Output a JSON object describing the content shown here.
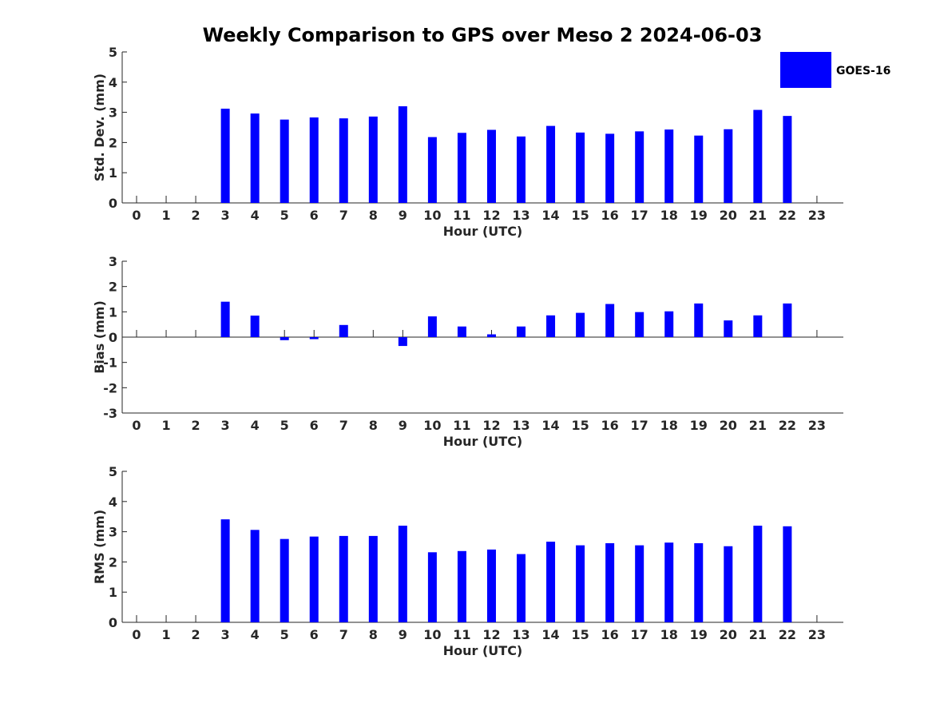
{
  "figure": {
    "title": "Weekly Comparison to GPS over Meso 2 2024-06-03"
  },
  "legend": {
    "label": "GOES-16",
    "color": "#0000ff"
  },
  "chart_data": [
    {
      "type": "bar",
      "name": "std-dev",
      "title": "Weekly Comparison to GPS over Meso 2 2024-06-03",
      "xlabel": "Hour (UTC)",
      "ylabel": "Std. Dev. (mm)",
      "ylim": [
        0,
        5
      ],
      "yticks": [
        "0",
        "1",
        "2",
        "3",
        "4",
        "5"
      ],
      "categories": [
        "0",
        "1",
        "2",
        "3",
        "4",
        "5",
        "6",
        "7",
        "8",
        "9",
        "10",
        "11",
        "12",
        "13",
        "14",
        "15",
        "16",
        "17",
        "18",
        "19",
        "20",
        "21",
        "22",
        "23"
      ],
      "series": [
        {
          "name": "GOES-16",
          "color": "#0000ff",
          "values": [
            null,
            null,
            null,
            3.12,
            2.96,
            2.76,
            2.83,
            2.8,
            2.86,
            3.2,
            2.18,
            2.32,
            2.42,
            2.2,
            2.55,
            2.33,
            2.29,
            2.37,
            2.43,
            2.23,
            2.44,
            3.08,
            2.88,
            null
          ]
        }
      ]
    },
    {
      "type": "bar",
      "name": "bias",
      "xlabel": "Hour (UTC)",
      "ylabel": "Bias (mm)",
      "ylim": [
        -3,
        3
      ],
      "yticks": [
        "-3",
        "-2",
        "-1",
        "0",
        "1",
        "2",
        "3"
      ],
      "categories": [
        "0",
        "1",
        "2",
        "3",
        "4",
        "5",
        "6",
        "7",
        "8",
        "9",
        "10",
        "11",
        "12",
        "13",
        "14",
        "15",
        "16",
        "17",
        "18",
        "19",
        "20",
        "21",
        "22",
        "23"
      ],
      "series": [
        {
          "name": "GOES-16",
          "color": "#0000ff",
          "values": [
            null,
            null,
            null,
            1.4,
            0.85,
            -0.12,
            -0.08,
            0.48,
            null,
            -0.35,
            0.82,
            0.42,
            0.11,
            0.42,
            0.86,
            0.96,
            1.31,
            0.99,
            1.02,
            1.33,
            0.66,
            0.86,
            1.33,
            null
          ]
        }
      ]
    },
    {
      "type": "bar",
      "name": "rms",
      "xlabel": "Hour (UTC)",
      "ylabel": "RMS (mm)",
      "ylim": [
        0,
        5
      ],
      "yticks": [
        "0",
        "1",
        "2",
        "3",
        "4",
        "5"
      ],
      "categories": [
        "0",
        "1",
        "2",
        "3",
        "4",
        "5",
        "6",
        "7",
        "8",
        "9",
        "10",
        "11",
        "12",
        "13",
        "14",
        "15",
        "16",
        "17",
        "18",
        "19",
        "20",
        "21",
        "22",
        "23"
      ],
      "series": [
        {
          "name": "GOES-16",
          "color": "#0000ff",
          "values": [
            null,
            null,
            null,
            3.41,
            3.06,
            2.76,
            2.84,
            2.86,
            2.86,
            3.2,
            2.32,
            2.36,
            2.41,
            2.26,
            2.67,
            2.55,
            2.62,
            2.55,
            2.64,
            2.62,
            2.52,
            3.2,
            3.18,
            null
          ]
        }
      ]
    }
  ]
}
